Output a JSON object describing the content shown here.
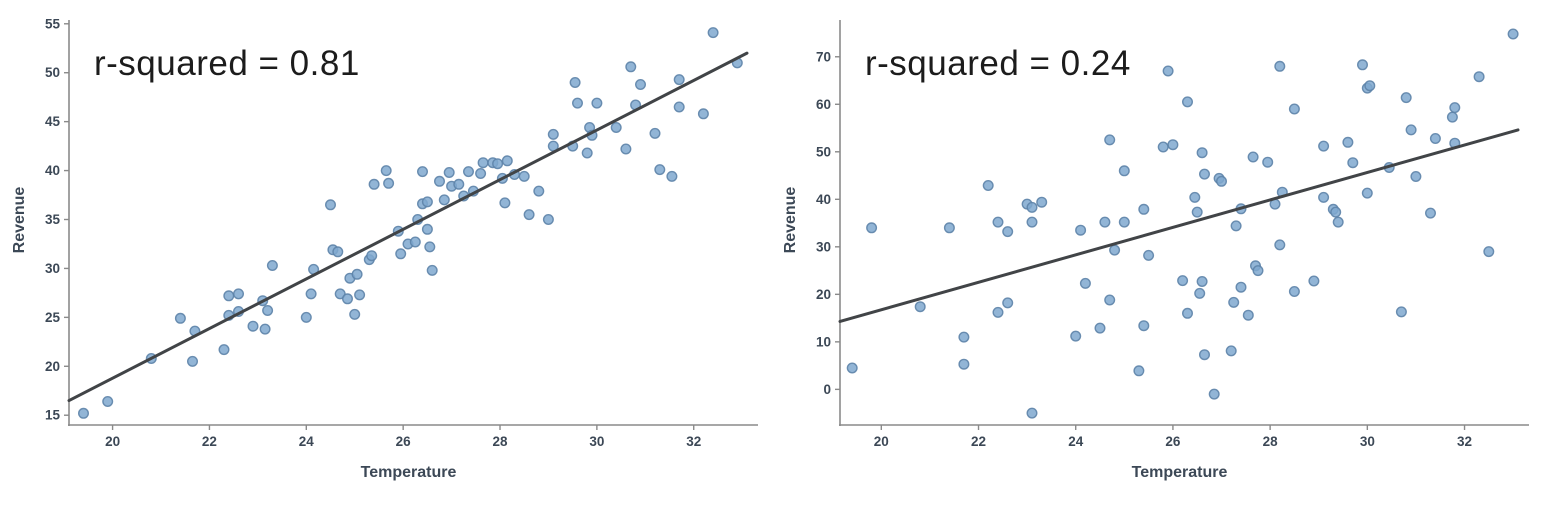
{
  "styles": {
    "background": "#ffffff",
    "dot_fill": "#7fa8cf",
    "dot_stroke": "#5d83a9",
    "line_color": "#414447",
    "axis_color": "#8a8a8a",
    "tick_label_color": "#3c4856",
    "axis_label_color": "#3c4856",
    "title_color": "#1c1c1c"
  },
  "chart_data": [
    {
      "type": "scatter",
      "title": "r-squared = 0.81",
      "xlabel": "Temperature",
      "ylabel": "Revenue",
      "xlim": [
        19.1,
        33.1
      ],
      "ylim": [
        14,
        56
      ],
      "xticks": [
        20,
        22,
        24,
        26,
        28,
        30,
        32
      ],
      "yticks": [
        15,
        20,
        25,
        30,
        35,
        40,
        45,
        50,
        55
      ],
      "grid": false,
      "legend": null,
      "regression_line": {
        "x": [
          19.1,
          33.1
        ],
        "y": [
          16.5,
          52.0
        ]
      },
      "points": [
        [
          19.4,
          15.2
        ],
        [
          19.9,
          16.4
        ],
        [
          20.8,
          20.8
        ],
        [
          21.4,
          24.9
        ],
        [
          21.65,
          20.5
        ],
        [
          21.7,
          23.6
        ],
        [
          22.3,
          21.7
        ],
        [
          22.4,
          25.2
        ],
        [
          22.4,
          27.2
        ],
        [
          22.6,
          27.4
        ],
        [
          22.6,
          25.6
        ],
        [
          22.9,
          24.1
        ],
        [
          23.1,
          26.7
        ],
        [
          23.15,
          23.8
        ],
        [
          23.2,
          25.7
        ],
        [
          23.3,
          30.3
        ],
        [
          24.0,
          25.0
        ],
        [
          24.1,
          27.4
        ],
        [
          24.15,
          29.9
        ],
        [
          24.5,
          36.5
        ],
        [
          24.55,
          31.9
        ],
        [
          24.65,
          31.7
        ],
        [
          24.7,
          27.4
        ],
        [
          24.85,
          26.9
        ],
        [
          24.9,
          29.0
        ],
        [
          25.0,
          25.3
        ],
        [
          25.05,
          29.4
        ],
        [
          25.1,
          27.3
        ],
        [
          25.3,
          30.9
        ],
        [
          25.35,
          31.3
        ],
        [
          25.4,
          38.6
        ],
        [
          25.65,
          40.0
        ],
        [
          25.7,
          38.7
        ],
        [
          25.9,
          33.8
        ],
        [
          25.95,
          31.5
        ],
        [
          26.1,
          32.5
        ],
        [
          26.25,
          32.7
        ],
        [
          26.3,
          35.0
        ],
        [
          26.4,
          39.9
        ],
        [
          26.4,
          36.6
        ],
        [
          26.5,
          36.8
        ],
        [
          26.5,
          34.0
        ],
        [
          26.55,
          32.2
        ],
        [
          26.6,
          29.8
        ],
        [
          26.75,
          38.9
        ],
        [
          26.85,
          37.0
        ],
        [
          26.95,
          39.8
        ],
        [
          27.0,
          38.4
        ],
        [
          27.15,
          38.6
        ],
        [
          27.25,
          37.4
        ],
        [
          27.35,
          39.9
        ],
        [
          27.45,
          37.9
        ],
        [
          27.6,
          39.7
        ],
        [
          27.65,
          40.8
        ],
        [
          27.85,
          40.8
        ],
        [
          27.95,
          40.7
        ],
        [
          28.05,
          39.2
        ],
        [
          28.1,
          36.7
        ],
        [
          28.15,
          41.0
        ],
        [
          28.3,
          39.6
        ],
        [
          28.5,
          39.4
        ],
        [
          28.6,
          35.5
        ],
        [
          28.8,
          37.9
        ],
        [
          29.0,
          35.0
        ],
        [
          29.1,
          43.7
        ],
        [
          29.1,
          42.5
        ],
        [
          29.5,
          42.5
        ],
        [
          29.55,
          49.0
        ],
        [
          29.6,
          46.9
        ],
        [
          29.8,
          41.8
        ],
        [
          29.85,
          44.4
        ],
        [
          29.9,
          43.6
        ],
        [
          30.0,
          46.9
        ],
        [
          30.4,
          44.4
        ],
        [
          30.6,
          42.2
        ],
        [
          30.7,
          50.6
        ],
        [
          30.8,
          46.7
        ],
        [
          30.9,
          48.8
        ],
        [
          31.2,
          43.8
        ],
        [
          31.3,
          40.1
        ],
        [
          31.55,
          39.4
        ],
        [
          31.7,
          49.3
        ],
        [
          31.7,
          46.5
        ],
        [
          32.2,
          45.8
        ],
        [
          32.4,
          54.1
        ],
        [
          32.9,
          51.0
        ]
      ]
    },
    {
      "type": "scatter",
      "title": "r-squared = 0.24",
      "xlabel": "Temperature",
      "ylabel": "Revenue",
      "xlim": [
        19.15,
        33.1
      ],
      "ylim": [
        -7.5,
        79
      ],
      "xticks": [
        20,
        22,
        24,
        26,
        28,
        30,
        32
      ],
      "yticks": [
        0,
        10,
        20,
        30,
        40,
        50,
        60,
        70
      ],
      "grid": false,
      "legend": null,
      "regression_line": {
        "x": [
          19.15,
          33.1
        ],
        "y": [
          14.3,
          54.6
        ]
      },
      "points": [
        [
          19.4,
          4.5
        ],
        [
          19.8,
          34.0
        ],
        [
          20.8,
          17.4
        ],
        [
          21.4,
          34.0
        ],
        [
          21.7,
          11.0
        ],
        [
          21.7,
          5.3
        ],
        [
          22.2,
          42.9
        ],
        [
          22.4,
          16.2
        ],
        [
          22.4,
          35.2
        ],
        [
          22.6,
          18.2
        ],
        [
          22.6,
          33.2
        ],
        [
          23.0,
          39.0
        ],
        [
          23.1,
          38.3
        ],
        [
          23.1,
          35.2
        ],
        [
          23.1,
          -5.0
        ],
        [
          23.3,
          39.4
        ],
        [
          24.0,
          11.2
        ],
        [
          24.1,
          33.5
        ],
        [
          24.2,
          22.3
        ],
        [
          24.5,
          12.9
        ],
        [
          24.6,
          35.2
        ],
        [
          24.7,
          18.8
        ],
        [
          24.7,
          52.5
        ],
        [
          24.8,
          29.3
        ],
        [
          25.0,
          46.0
        ],
        [
          25.0,
          35.2
        ],
        [
          25.3,
          3.9
        ],
        [
          25.4,
          13.4
        ],
        [
          25.4,
          37.9
        ],
        [
          25.5,
          28.2
        ],
        [
          25.8,
          51.0
        ],
        [
          25.9,
          67.0
        ],
        [
          26.0,
          51.5
        ],
        [
          26.2,
          22.9
        ],
        [
          26.3,
          60.5
        ],
        [
          26.3,
          16.0
        ],
        [
          26.45,
          40.4
        ],
        [
          26.5,
          37.3
        ],
        [
          26.55,
          20.2
        ],
        [
          26.6,
          49.8
        ],
        [
          26.6,
          22.7
        ],
        [
          26.65,
          45.3
        ],
        [
          26.65,
          7.3
        ],
        [
          26.85,
          -1.0
        ],
        [
          26.95,
          44.4
        ],
        [
          27.0,
          43.8
        ],
        [
          27.2,
          8.1
        ],
        [
          27.25,
          18.3
        ],
        [
          27.3,
          34.4
        ],
        [
          27.4,
          38.0
        ],
        [
          27.4,
          21.5
        ],
        [
          27.55,
          15.6
        ],
        [
          27.65,
          48.9
        ],
        [
          27.7,
          26.0
        ],
        [
          27.75,
          25.0
        ],
        [
          27.95,
          47.8
        ],
        [
          28.1,
          39.0
        ],
        [
          28.2,
          68.0
        ],
        [
          28.25,
          41.5
        ],
        [
          28.2,
          30.4
        ],
        [
          28.5,
          59.0
        ],
        [
          28.5,
          20.6
        ],
        [
          28.9,
          22.8
        ],
        [
          29.1,
          51.2
        ],
        [
          29.1,
          40.4
        ],
        [
          29.3,
          37.9
        ],
        [
          29.35,
          37.3
        ],
        [
          29.4,
          35.2
        ],
        [
          29.6,
          52.0
        ],
        [
          29.7,
          47.7
        ],
        [
          29.9,
          68.3
        ],
        [
          30.0,
          63.4
        ],
        [
          30.05,
          63.9
        ],
        [
          30.0,
          41.3
        ],
        [
          30.45,
          46.7
        ],
        [
          30.7,
          16.3
        ],
        [
          30.8,
          61.4
        ],
        [
          30.9,
          54.6
        ],
        [
          31.0,
          44.8
        ],
        [
          31.3,
          37.1
        ],
        [
          31.4,
          52.8
        ],
        [
          31.75,
          57.3
        ],
        [
          31.8,
          59.3
        ],
        [
          31.8,
          51.8
        ],
        [
          32.3,
          65.8
        ],
        [
          32.5,
          29.0
        ],
        [
          33.0,
          74.8
        ]
      ]
    }
  ]
}
